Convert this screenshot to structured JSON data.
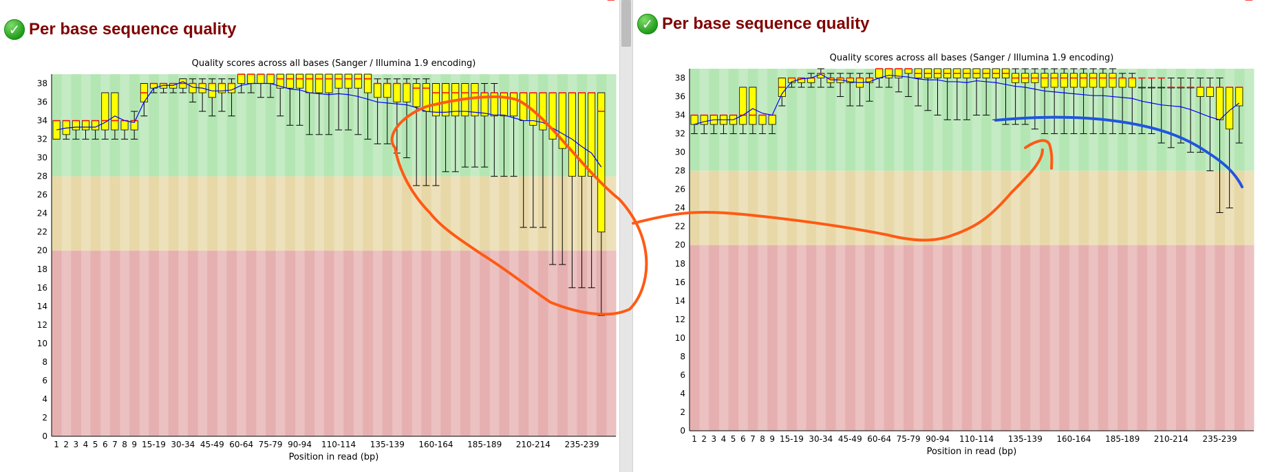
{
  "modules": [
    {
      "title": "Per base sequence quality",
      "icon": "check-circle-icon"
    },
    {
      "title": "Per base sequence quality",
      "icon": "check-circle-icon"
    }
  ],
  "chart_data": [
    {
      "type": "box",
      "title": "Quality scores across all bases (Sanger / Illumina 1.9 encoding)",
      "xlabel": "Position in read (bp)",
      "ylabel": "",
      "ylim": [
        0,
        39
      ],
      "yticks": [
        0,
        2,
        4,
        6,
        8,
        10,
        12,
        14,
        16,
        18,
        20,
        22,
        24,
        26,
        28,
        30,
        32,
        34,
        36,
        38
      ],
      "categories": [
        "1",
        "2",
        "3",
        "4",
        "5",
        "6",
        "7",
        "8",
        "9",
        "10-14",
        "15-19",
        "20-24",
        "25-29",
        "30-34",
        "35-39",
        "40-44",
        "45-49",
        "50-54",
        "55-59",
        "60-64",
        "65-69",
        "70-74",
        "75-79",
        "80-84",
        "85-89",
        "90-94",
        "95-99",
        "100-104",
        "105-109",
        "110-114",
        "115-119",
        "120-124",
        "125-129",
        "130-134",
        "135-139",
        "140-144",
        "145-149",
        "150-154",
        "155-159",
        "160-164",
        "165-169",
        "170-174",
        "175-179",
        "180-184",
        "185-189",
        "190-194",
        "195-199",
        "200-204",
        "205-209",
        "210-214",
        "215-219",
        "220-224",
        "225-229",
        "230-234",
        "235-239",
        "240-244",
        "245-249",
        "250-251"
      ],
      "xtick_labels": [
        "1",
        "2",
        "3",
        "4",
        "5",
        "6",
        "7",
        "8",
        "9",
        "15-19",
        "30-34",
        "45-49",
        "60-64",
        "75-79",
        "90-94",
        "110-114",
        "135-139",
        "160-164",
        "185-189",
        "210-214",
        "235-239"
      ],
      "zones": {
        "good": [
          28,
          39
        ],
        "reasonable": [
          20,
          28
        ],
        "poor": [
          0,
          20
        ]
      },
      "colors": {
        "good": "#b4e6b4",
        "reasonable": "#e8d8a8",
        "poor": "#e6b0b0",
        "box": "#ffff00",
        "median": "#ff0000",
        "mean": "#0000ff"
      },
      "series": [
        {
          "q1": [
            32,
            32.5,
            33,
            33,
            33,
            33,
            33,
            33,
            33,
            36,
            37.5,
            37.5,
            37.5,
            37.5,
            37,
            37,
            36.5,
            37,
            37,
            38,
            38,
            38,
            38,
            37.5,
            37.5,
            37.5,
            37,
            37,
            37,
            37.5,
            37.5,
            37.5,
            37,
            36.5,
            36.5,
            36,
            36,
            35.5,
            35,
            34.5,
            34.5,
            34.5,
            34.5,
            34.5,
            34.5,
            34.5,
            34.5,
            34.5,
            34,
            33.5,
            33,
            32,
            31,
            28,
            28,
            28,
            22
          ],
          "median": [
            34,
            34,
            34,
            34,
            34,
            34,
            34,
            34,
            34,
            37,
            38,
            38,
            38,
            38,
            38,
            38,
            38,
            38,
            38,
            39,
            39,
            39,
            39,
            38.5,
            38.5,
            38.5,
            38.5,
            38.5,
            38.5,
            38.5,
            38.5,
            38.5,
            38.5,
            38,
            38,
            38,
            38,
            37.5,
            37.5,
            37,
            37,
            37,
            37,
            37,
            37,
            37,
            37,
            37,
            37,
            37,
            37,
            37,
            37,
            37,
            37,
            37,
            35
          ],
          "q3": [
            34,
            34,
            34,
            34,
            34,
            37,
            37,
            34,
            34,
            38,
            38,
            38,
            38,
            38.5,
            38,
            38,
            38,
            38,
            38,
            39,
            39,
            39,
            39,
            39,
            39,
            39,
            39,
            39,
            39,
            39,
            39,
            39,
            39,
            38,
            38,
            38,
            38,
            38,
            38,
            38,
            38,
            38,
            38,
            38,
            37,
            37,
            37,
            37,
            37,
            37,
            37,
            37,
            37,
            37,
            37,
            37,
            37
          ],
          "low": [
            32,
            32,
            32,
            32,
            32,
            32,
            32,
            32,
            32,
            34.5,
            37,
            37,
            37,
            37,
            36,
            35,
            34.5,
            35,
            34.5,
            37,
            37,
            36.5,
            36.5,
            34.5,
            33.5,
            33.5,
            32.5,
            32.5,
            32.5,
            33,
            33,
            32.5,
            32,
            31.5,
            31.5,
            30.5,
            30,
            27,
            27,
            27,
            28.5,
            28.5,
            29,
            29,
            29,
            28,
            28,
            28,
            22.5,
            22.5,
            22.5,
            18.5,
            18.5,
            16,
            16,
            16,
            13
          ],
          "high": [
            34,
            34,
            34,
            34,
            34,
            37,
            37,
            34,
            35,
            38,
            38,
            38,
            38,
            38.5,
            38.5,
            38.5,
            38.5,
            38.5,
            38.5,
            39,
            39,
            39,
            39,
            39,
            39,
            39,
            39,
            39,
            39,
            39,
            39,
            39,
            39,
            38.5,
            38.5,
            38.5,
            38.5,
            38.5,
            38.5,
            38,
            38,
            38,
            38,
            38,
            38,
            38,
            37,
            37,
            37,
            37,
            37,
            37,
            37,
            37,
            37,
            37,
            37
          ],
          "mean": [
            33,
            33.2,
            33.3,
            33.3,
            33.3,
            33.8,
            34.5,
            34,
            33.8,
            36,
            37.5,
            37.8,
            37.8,
            38.2,
            37.6,
            37.5,
            37.2,
            37.2,
            37.3,
            37.8,
            38,
            38,
            38,
            37.7,
            37.4,
            37.3,
            37,
            36.9,
            36.8,
            36.9,
            36.8,
            36.6,
            36.3,
            36,
            35.9,
            35.8,
            35.7,
            35.4,
            35,
            34.9,
            34.9,
            35,
            35,
            34.9,
            34.8,
            34.6,
            34.6,
            34.3,
            34,
            34,
            33.8,
            33.2,
            32.6,
            32,
            31.2,
            30.5,
            29
          ]
        }
      ]
    },
    {
      "type": "box",
      "title": "Quality scores across all bases (Sanger / Illumina 1.9 encoding)",
      "xlabel": "Position in read (bp)",
      "ylabel": "",
      "ylim": [
        0,
        39
      ],
      "yticks": [
        0,
        2,
        4,
        6,
        8,
        10,
        12,
        14,
        16,
        18,
        20,
        22,
        24,
        26,
        28,
        30,
        32,
        34,
        36,
        38
      ],
      "categories": [
        "1",
        "2",
        "3",
        "4",
        "5",
        "6",
        "7",
        "8",
        "9",
        "10-14",
        "15-19",
        "20-24",
        "25-29",
        "30-34",
        "35-39",
        "40-44",
        "45-49",
        "50-54",
        "55-59",
        "60-64",
        "65-69",
        "70-74",
        "75-79",
        "80-84",
        "85-89",
        "90-94",
        "95-99",
        "100-104",
        "105-109",
        "110-114",
        "115-119",
        "120-124",
        "125-129",
        "130-134",
        "135-139",
        "140-144",
        "145-149",
        "150-154",
        "155-159",
        "160-164",
        "165-169",
        "170-174",
        "175-179",
        "180-184",
        "185-189",
        "190-194",
        "195-199",
        "200-204",
        "205-209",
        "210-214",
        "215-219",
        "220-224",
        "225-229",
        "230-234",
        "235-239",
        "240-244",
        "245-249",
        "250-251"
      ],
      "xtick_labels": [
        "1",
        "2",
        "3",
        "4",
        "5",
        "6",
        "7",
        "8",
        "9",
        "15-19",
        "30-34",
        "45-49",
        "60-64",
        "75-79",
        "90-94",
        "110-114",
        "135-139",
        "160-164",
        "185-189",
        "210-214",
        "235-239"
      ],
      "zones": {
        "good": [
          28,
          39
        ],
        "reasonable": [
          20,
          28
        ],
        "poor": [
          0,
          20
        ]
      },
      "colors": {
        "good": "#b4e6b4",
        "reasonable": "#e8d8a8",
        "poor": "#e6b0b0",
        "box": "#ffff00",
        "median": "#ff0000",
        "mean": "#0000ff"
      },
      "series": [
        {
          "q1": [
            33,
            33,
            33,
            33,
            33,
            33,
            33,
            33,
            33,
            36,
            37.5,
            37.5,
            37.5,
            38,
            37.5,
            37.5,
            37.5,
            37,
            37.5,
            38,
            38,
            38,
            38.5,
            38,
            38,
            38,
            38,
            38,
            38,
            38,
            38,
            38,
            38,
            37.5,
            37.5,
            37.5,
            37,
            37,
            37,
            37,
            37,
            37,
            37,
            37,
            37,
            37,
            37,
            37,
            37,
            37,
            37,
            37,
            36,
            36,
            33.5,
            32.5,
            35
          ],
          "median": [
            34,
            34,
            34,
            34,
            34,
            34,
            34,
            34,
            34,
            37,
            38,
            38,
            38,
            38.5,
            38,
            38,
            38,
            38,
            38,
            39,
            39,
            39,
            39,
            38.5,
            38.5,
            38.5,
            38.5,
            38.5,
            38.5,
            38.5,
            38.5,
            38.5,
            38.5,
            38,
            38,
            38,
            38,
            38,
            38,
            38,
            38,
            38,
            38,
            38,
            38,
            38,
            38,
            38,
            38,
            37,
            37,
            37,
            37,
            37,
            37,
            37,
            37
          ],
          "q3": [
            34,
            34,
            34,
            34,
            34,
            37,
            37,
            34,
            34,
            38,
            38,
            38,
            38,
            38.5,
            38,
            38,
            38,
            38,
            38,
            39,
            39,
            39,
            39,
            39,
            39,
            39,
            39,
            39,
            39,
            39,
            39,
            39,
            39,
            38.5,
            38.5,
            38.5,
            38.5,
            38.5,
            38.5,
            38.5,
            38.5,
            38.5,
            38.5,
            38.5,
            38,
            38,
            37,
            37,
            37,
            37,
            37,
            37,
            37,
            37,
            37,
            37,
            37
          ],
          "low": [
            32,
            32,
            32,
            32,
            32,
            32,
            32,
            32,
            32,
            35,
            37,
            37,
            37,
            37,
            37,
            36,
            35,
            35,
            35.5,
            37,
            37,
            36.5,
            36,
            35,
            34.5,
            34,
            33.5,
            33.5,
            33.5,
            34,
            34,
            33.5,
            33,
            33,
            33,
            32.5,
            32,
            32,
            32,
            32,
            32,
            32,
            32,
            32,
            32,
            32,
            32,
            32,
            31,
            30.5,
            31,
            30,
            30,
            28,
            23.5,
            24,
            31
          ],
          "high": [
            34,
            34,
            34,
            34,
            34,
            37,
            37,
            34,
            34,
            38,
            38,
            38,
            38.5,
            39,
            38.5,
            38.5,
            38.5,
            38.5,
            38.5,
            39,
            39,
            39,
            39,
            39,
            39,
            39,
            39,
            39,
            39,
            39,
            39,
            39,
            39,
            39,
            39,
            39,
            39,
            39,
            39,
            39,
            39,
            39,
            39,
            39,
            38.5,
            38.5,
            38,
            38,
            38,
            38,
            38,
            38,
            38,
            38,
            38,
            37,
            37
          ],
          "mean": [
            33,
            33.3,
            33.5,
            33.5,
            33.5,
            34,
            34.7,
            34.2,
            34,
            36.3,
            37.6,
            37.9,
            38,
            38.4,
            37.8,
            37.8,
            37.6,
            37.5,
            37.6,
            38,
            38.3,
            38.2,
            38.1,
            37.9,
            37.8,
            37.8,
            37.6,
            37.6,
            37.5,
            37.7,
            37.6,
            37.5,
            37.3,
            37.1,
            37,
            36.8,
            36.6,
            36.5,
            36.4,
            36.3,
            36.2,
            36.1,
            36.1,
            36,
            35.9,
            35.8,
            35.5,
            35.3,
            35.1,
            35,
            34.9,
            34.6,
            34.2,
            33.8,
            33.5,
            34.5,
            35.3
          ]
        }
      ]
    }
  ]
}
